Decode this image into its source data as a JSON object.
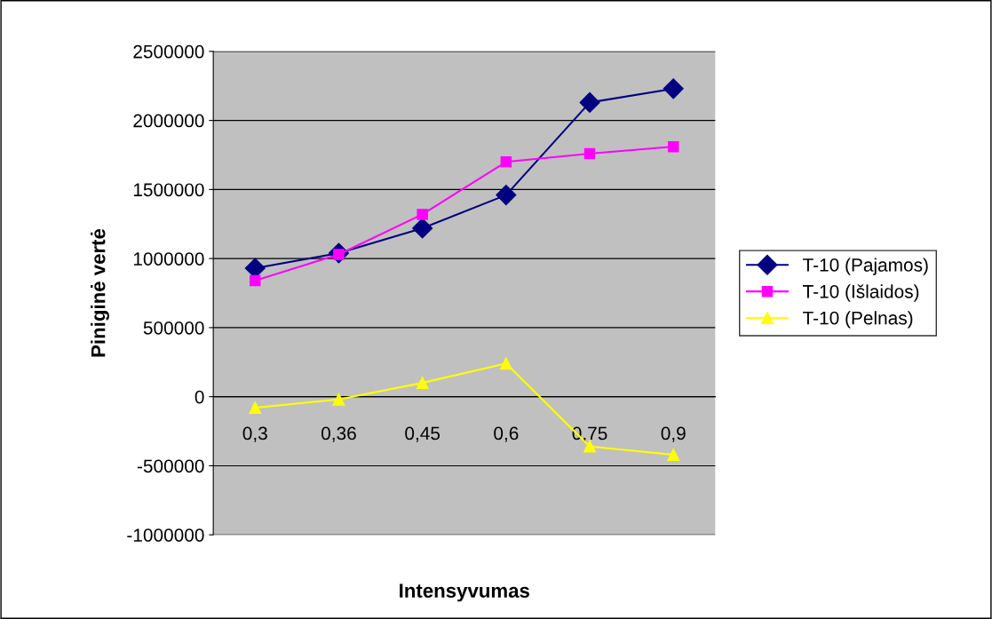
{
  "chart_data": {
    "type": "line",
    "xlabel": "Intensyvumas",
    "ylabel": "Piniginė vertė",
    "categories": [
      "0,3",
      "0,36",
      "0,45",
      "0,6",
      "0,75",
      "0,9"
    ],
    "series": [
      {
        "name": "T-10 (Pajamos)",
        "color": "#000080",
        "marker": "diamond",
        "values": [
          930000,
          1040000,
          1220000,
          1460000,
          2130000,
          2230000
        ]
      },
      {
        "name": "T-10 (Išlaidos)",
        "color": "#ff00ff",
        "marker": "square",
        "values": [
          840000,
          1030000,
          1320000,
          1700000,
          1760000,
          1810000
        ]
      },
      {
        "name": "T-10 (Pelnas)",
        "color": "#ffff00",
        "marker": "triangle",
        "values": [
          -80000,
          -20000,
          100000,
          240000,
          -360000,
          -420000
        ]
      }
    ],
    "ylim": [
      -1000000,
      2500000
    ],
    "yticks": [
      -1000000,
      -500000,
      0,
      500000,
      1000000,
      1500000,
      2000000,
      2500000
    ],
    "grid": "y",
    "legend": "right",
    "line_style": "solid"
  }
}
